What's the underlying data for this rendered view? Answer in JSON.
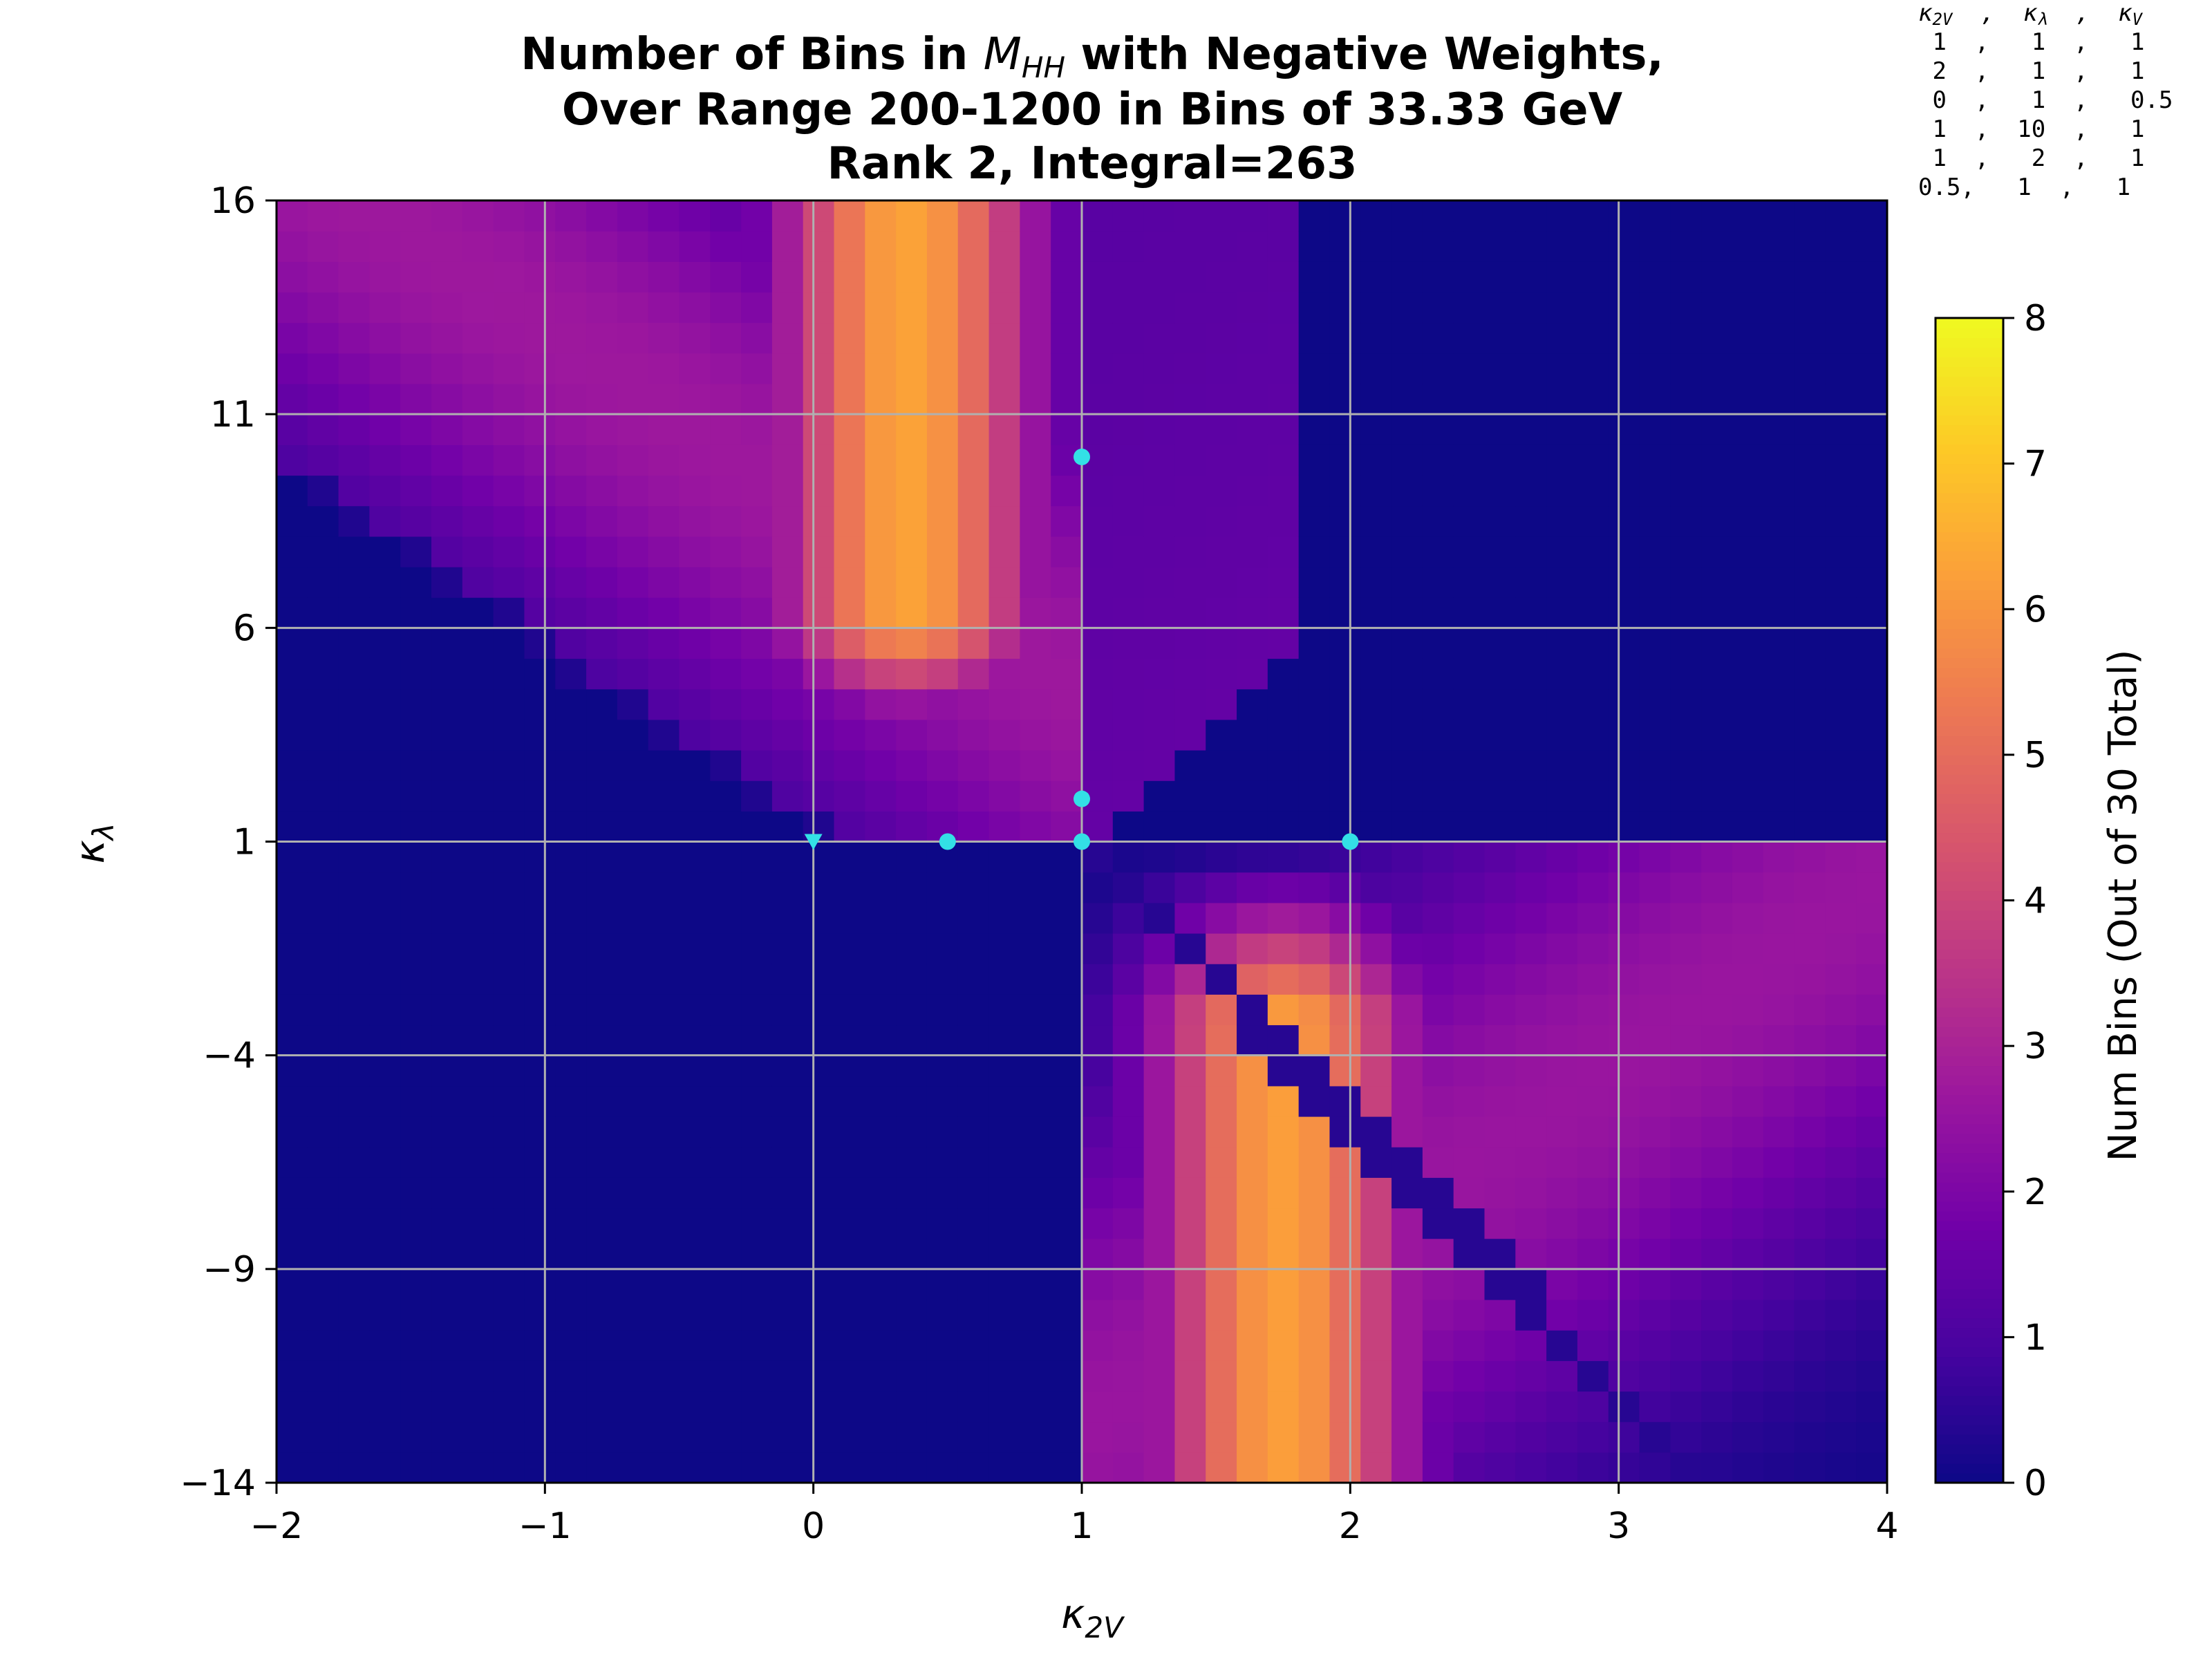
{
  "chart_data": {
    "type": "heatmap",
    "title_line1_prefix": "Number of Bins in ",
    "title_line1_math": "M",
    "title_line1_sub": "HH",
    "title_line1_suffix": " with Negative Weights,",
    "title_line2": "Over Range 200-1200 in Bins of 33.33 GeV",
    "title_line3": "Rank 2, Integral=263",
    "xlabel": "κ",
    "xlabel_sub": "2V",
    "ylabel": "κ",
    "ylabel_sub": "λ",
    "xlim": [
      -2,
      4
    ],
    "ylim": [
      -14,
      16
    ],
    "x_ticks": [
      -2,
      -1,
      0,
      1,
      2,
      3,
      4
    ],
    "x_tick_labels": [
      "−2",
      "−1",
      "0",
      "1",
      "2",
      "3",
      "4"
    ],
    "y_ticks": [
      -14,
      -9,
      -4,
      1,
      6,
      11,
      16
    ],
    "y_tick_labels": [
      "−14",
      "−9",
      "−4",
      "1",
      "6",
      "11",
      "16"
    ],
    "colorbar": {
      "label": "Num Bins (Out of 30 Total)",
      "range": [
        0,
        8
      ],
      "ticks": [
        0,
        1,
        2,
        3,
        4,
        5,
        6,
        7,
        8
      ],
      "tick_labels": [
        "0",
        "1",
        "2",
        "3",
        "4",
        "5",
        "6",
        "7",
        "8"
      ],
      "colormap": "plasma"
    },
    "grid": true,
    "colormap_stops": [
      "#0d0887",
      "#46039f",
      "#7201a8",
      "#9c179e",
      "#bd3786",
      "#d8576b",
      "#ed7953",
      "#fb9f3a",
      "#fdca26",
      "#f0f921"
    ],
    "grid_color": "#b0b0b0",
    "marker_color": "#33e0e6",
    "basis_points": [
      {
        "k2v": 1,
        "kl": 1,
        "marker": "circle"
      },
      {
        "k2v": 2,
        "kl": 1,
        "marker": "circle"
      },
      {
        "k2v": 0,
        "kl": 1,
        "marker": "triangle-down"
      },
      {
        "k2v": 1,
        "kl": 10,
        "marker": "circle"
      },
      {
        "k2v": 1,
        "kl": 2,
        "marker": "circle"
      },
      {
        "k2v": 0.5,
        "kl": 1,
        "marker": "circle"
      }
    ],
    "legend": {
      "header_k2v": "κ",
      "header_k2v_sub": "2V",
      "header_kl": "κ",
      "header_kl_sub": "λ",
      "header_kv": "κ",
      "header_kv_sub": "V",
      "rows": [
        " 1  ,   1  ,   1",
        " 2  ,   1  ,   1",
        " 0  ,   1  ,   0.5",
        " 1  ,  10  ,   1",
        " 1  ,   2  ,   1",
        "0.5,   1  ,   1"
      ]
    },
    "grid_resolution": {
      "nx": 52,
      "ny": 42
    },
    "regions": [
      {
        "description": "upper-left lobe",
        "peak_value": 6
      },
      {
        "description": "lower-right lobe",
        "peak_value": 7
      }
    ]
  }
}
